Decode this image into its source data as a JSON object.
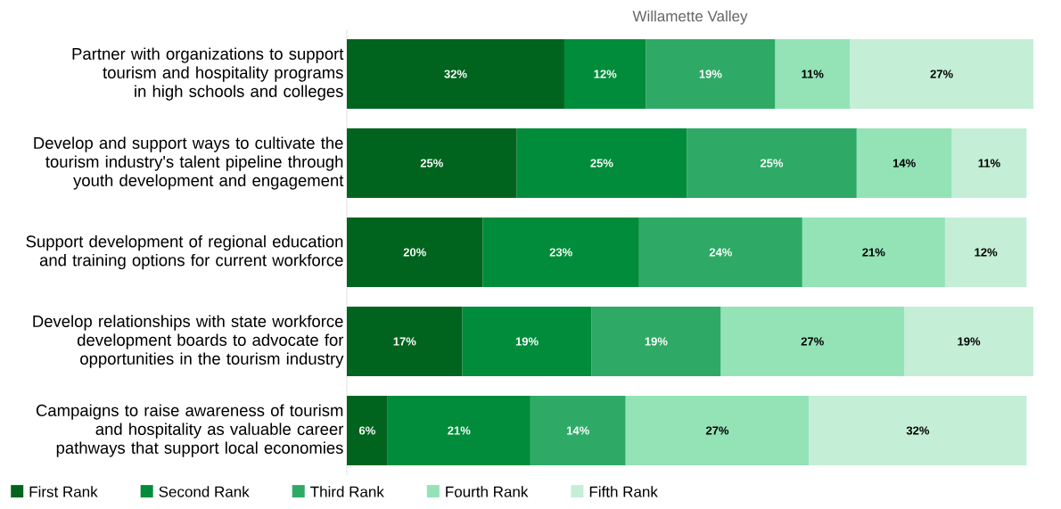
{
  "chart_data": {
    "type": "bar",
    "orientation": "horizontal",
    "stacked": true,
    "title": "Willamette Valley",
    "categories": [
      "Partner with organizations to support tourism and hospitality programs in high schools and colleges",
      "Develop and support ways to cultivate the tourism industry's talent pipeline through youth development and engagement",
      "Support development of regional education and training options for current workforce",
      "Develop relationships with state workforce development boards to advocate for opportunities in the tourism industry",
      "Campaigns to raise awareness of tourism and hospitality as valuable career pathways that support local economies"
    ],
    "series": [
      {
        "name": "First Rank",
        "color": "#00641e",
        "values": [
          32,
          25,
          20,
          17,
          6
        ],
        "value_labels": [
          "32%",
          "25%",
          "20%",
          "17%",
          "6%"
        ]
      },
      {
        "name": "Second Rank",
        "color": "#008c3a",
        "values": [
          12,
          25,
          23,
          19,
          21
        ],
        "value_labels": [
          "12%",
          "25%",
          "23%",
          "19%",
          "21%"
        ]
      },
      {
        "name": "Third Rank",
        "color": "#2eaa66",
        "values": [
          19,
          25,
          24,
          19,
          14
        ],
        "value_labels": [
          "19%",
          "25%",
          "24%",
          "19%",
          "14%"
        ]
      },
      {
        "name": "Fourth Rank",
        "color": "#94e3b7",
        "values": [
          11,
          14,
          21,
          27,
          27
        ],
        "value_labels": [
          "11%",
          "14%",
          "21%",
          "27%",
          "27%"
        ]
      },
      {
        "name": "Fifth Rank",
        "color": "#c4eed6",
        "values": [
          27,
          11,
          12,
          19,
          32
        ],
        "value_labels": [
          "27%",
          "11%",
          "12%",
          "19%",
          "32%"
        ]
      }
    ],
    "legend": "bottom",
    "tick_labels": "y"
  }
}
